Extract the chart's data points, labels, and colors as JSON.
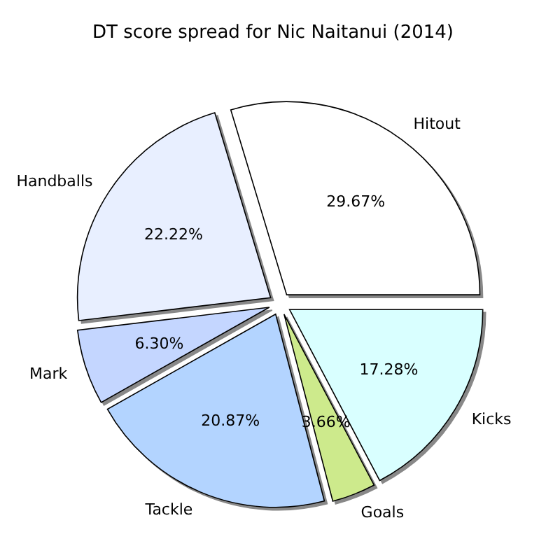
{
  "chart_data": {
    "type": "pie",
    "title": "DT score spread for Nic Naitanui (2014)",
    "categories": [
      "Hitout",
      "Handballs",
      "Mark",
      "Tackle",
      "Goals",
      "Kicks"
    ],
    "values": [
      29.67,
      22.22,
      6.3,
      20.87,
      3.66,
      17.28
    ],
    "colors": [
      "#ffffff",
      "#e8efff",
      "#c4d6ff",
      "#b3d4ff",
      "#cdea8c",
      "#d9ffff"
    ],
    "value_labels": [
      "29.67%",
      "22.22%",
      "6.30%",
      "20.87%",
      "3.66%",
      "17.28%"
    ],
    "legend": false
  }
}
